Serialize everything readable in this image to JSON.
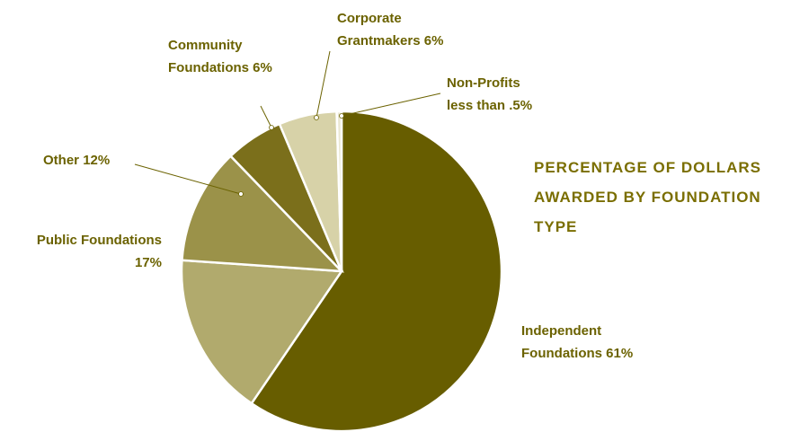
{
  "chart_data": {
    "type": "pie",
    "title": "PERCENTAGE OF DOLLARS AWARDED BY FOUNDATION TYPE",
    "categories": [
      "Independent Foundations",
      "Public Foundations",
      "Other",
      "Community Foundations",
      "Corporate Grantmakers",
      "Non-Profits"
    ],
    "values": [
      61,
      17,
      12,
      6,
      6,
      0.5
    ],
    "value_labels": [
      "61%",
      "17%",
      "12%",
      "6%",
      "6%",
      "less than .5%"
    ],
    "colors": [
      "#675d00",
      "#b1aa6d",
      "#9b9249",
      "#7b6f1b",
      "#d7d2a8",
      "#ebe8d4"
    ]
  }
}
